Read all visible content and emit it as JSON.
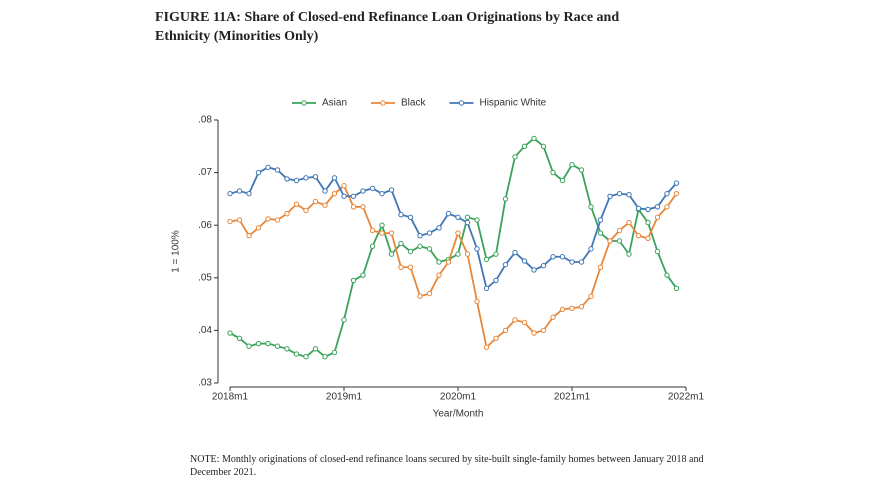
{
  "chart_data": {
    "type": "line",
    "title": "FIGURE 11A: Share of Closed-end Refinance Loan Originations by Race and Ethnicity (Minorities Only)",
    "note": "NOTE: Monthly originations of closed-end refinance loans secured by site-built single-family homes between January 2018 and December 2021.",
    "x_label": "Year/Month",
    "y_label": "1 = 100%",
    "categories": [
      "2018m1",
      null,
      null,
      null,
      null,
      null,
      null,
      null,
      null,
      null,
      null,
      null,
      "2019m1",
      null,
      null,
      null,
      null,
      null,
      null,
      null,
      null,
      null,
      null,
      null,
      "2020m1",
      null,
      null,
      null,
      null,
      null,
      null,
      null,
      null,
      null,
      null,
      null,
      "2021m1",
      null,
      null,
      null,
      null,
      null,
      null,
      null,
      null,
      null,
      null,
      null,
      "2022m1"
    ],
    "series": [
      {
        "name": "Asian",
        "color": "#3aa35a",
        "values": [
          0.0395,
          0.0385,
          0.037,
          0.0375,
          0.0375,
          0.037,
          0.0365,
          0.0355,
          0.035,
          0.0365,
          0.035,
          0.0358,
          0.042,
          0.0495,
          0.0505,
          0.056,
          0.06,
          0.0545,
          0.0565,
          0.055,
          0.056,
          0.0555,
          0.053,
          0.0535,
          0.0545,
          0.0615,
          0.061,
          0.0535,
          0.0545,
          0.065,
          0.073,
          0.075,
          0.0765,
          0.075,
          0.07,
          0.0685,
          0.0715,
          0.0705,
          0.0635,
          0.0585,
          0.057,
          0.057,
          0.0545,
          0.063,
          0.0605,
          0.055,
          0.0505,
          0.048,
          null
        ]
      },
      {
        "name": "Black",
        "color": "#e8873a",
        "values": [
          0.0607,
          0.061,
          0.058,
          0.0595,
          0.0612,
          0.061,
          0.0622,
          0.064,
          0.0628,
          0.0645,
          0.0638,
          0.066,
          0.0675,
          0.0635,
          0.0635,
          0.059,
          0.0585,
          0.0585,
          0.052,
          0.052,
          0.0465,
          0.047,
          0.0505,
          0.053,
          0.0585,
          0.0545,
          0.0455,
          0.0368,
          0.0385,
          0.04,
          0.042,
          0.0415,
          0.0395,
          0.04,
          0.0425,
          0.044,
          0.0442,
          0.0445,
          0.0465,
          0.052,
          0.057,
          0.059,
          0.0605,
          0.058,
          0.0575,
          0.0615,
          0.0635,
          0.066,
          null
        ]
      },
      {
        "name": "Hispanic White",
        "color": "#3f76b5",
        "values": [
          0.066,
          0.0665,
          0.066,
          0.07,
          0.071,
          0.0705,
          0.0688,
          0.0685,
          0.069,
          0.0692,
          0.0665,
          0.069,
          0.0655,
          0.0655,
          0.0665,
          0.067,
          0.066,
          0.0667,
          0.062,
          0.0615,
          0.058,
          0.0585,
          0.0595,
          0.0622,
          0.0615,
          0.0605,
          0.0555,
          0.048,
          0.0495,
          0.0525,
          0.0548,
          0.0532,
          0.0515,
          0.0523,
          0.054,
          0.054,
          0.053,
          0.053,
          0.0555,
          0.061,
          0.0655,
          0.066,
          0.0658,
          0.0632,
          0.063,
          0.0635,
          0.066,
          0.068,
          null
        ]
      }
    ],
    "ylim": [
      0.03,
      0.08
    ],
    "yticks": [
      {
        "value": 0.03,
        "label": ".03"
      },
      {
        "value": 0.04,
        "label": ".04"
      },
      {
        "value": 0.05,
        "label": ".05"
      },
      {
        "value": 0.06,
        "label": ".06"
      },
      {
        "value": 0.07,
        "label": ".07"
      },
      {
        "value": 0.08,
        "label": ".08"
      }
    ],
    "grid": false,
    "legend": "top"
  }
}
